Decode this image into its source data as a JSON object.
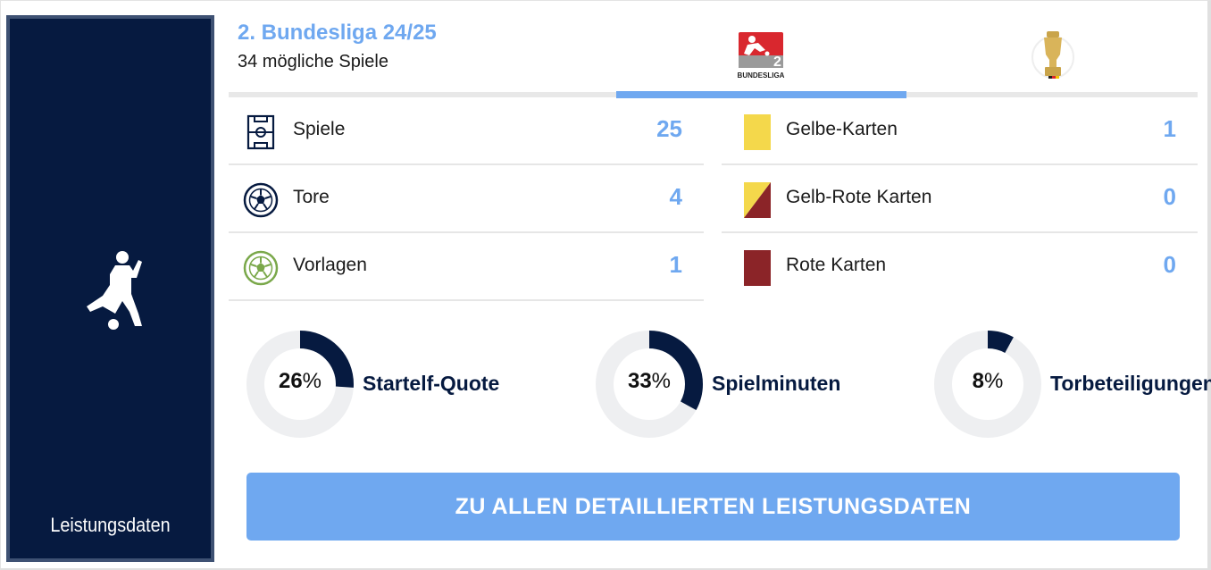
{
  "sidebar": {
    "label": "Leistungsdaten",
    "icon": "footballer-kicking-icon"
  },
  "header": {
    "title": "2. Bundesliga 24/25",
    "subtitle": "34 mögliche Spiele"
  },
  "tabs": [
    {
      "icon": "bundesliga-2-logo-icon",
      "active": true,
      "logo_text": "BUNDESLIGA"
    },
    {
      "icon": "dfb-pokal-trophy-icon",
      "active": false
    }
  ],
  "stats_left": [
    {
      "label": "Spiele",
      "value": "25",
      "icon": "pitch-icon"
    },
    {
      "label": "Tore",
      "value": "4",
      "icon": "football-icon"
    },
    {
      "label": "Vorlagen",
      "value": "1",
      "icon": "assist-ball-icon"
    }
  ],
  "stats_right": [
    {
      "label": "Gelbe-Karten",
      "value": "1",
      "icon": "yellow-card-icon"
    },
    {
      "label": "Gelb-Rote Karten",
      "value": "0",
      "icon": "yellow-red-card-icon"
    },
    {
      "label": "Rote Karten",
      "value": "0",
      "icon": "red-card-icon"
    }
  ],
  "rings": [
    {
      "percent": 26,
      "number": "26",
      "unit": "%",
      "label": "Startelf-Quote"
    },
    {
      "percent": 33,
      "number": "33",
      "unit": "%",
      "label": "Spielminuten"
    },
    {
      "percent": 8,
      "number": "8",
      "unit": "%",
      "label": "Torbeteiligungen"
    }
  ],
  "cta": {
    "label": "ZU ALLEN DETAILLIERTEN LEISTUNGSDATEN"
  },
  "colors": {
    "navy": "#061a40",
    "accent": "#6fa8f0",
    "track": "#eeeff1",
    "yellow": "#f4d84b",
    "red": "#8b2428"
  }
}
